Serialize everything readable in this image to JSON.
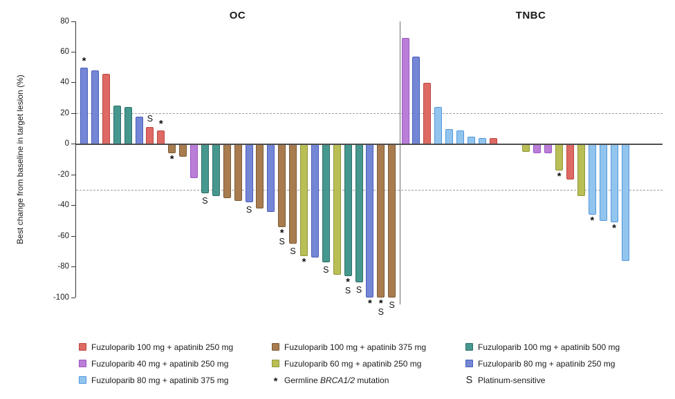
{
  "chart_data": {
    "type": "bar",
    "subtype": "waterfall",
    "title": "",
    "ylabel": "Best change from baseline in target lesion (%)",
    "ylim": [
      -100,
      80
    ],
    "yticks": [
      80,
      60,
      40,
      20,
      0,
      -20,
      -40,
      -60,
      -80,
      -100
    ],
    "reference_lines_y": [
      20,
      -30
    ],
    "grid": false,
    "legend_position": "bottom",
    "marker_meanings": {
      "*": "Germline BRCA1/2 mutation",
      "S": "Platinum-sensitive"
    },
    "groups": [
      {
        "id": "fz100-ap250",
        "label": "Fuzuloparib 100 mg + apatinib 250 mg",
        "fill": "#de6a64",
        "border": "#bb4540"
      },
      {
        "id": "fz40-ap250",
        "label": "Fuzuloparib 40 mg + apatinib 250 mg",
        "fill": "#ba7dd8",
        "border": "#9a55c2"
      },
      {
        "id": "fz80-ap375",
        "label": "Fuzuloparib 80 mg + apatinib 375 mg",
        "fill": "#92c5ee",
        "border": "#5096dc"
      },
      {
        "id": "fz100-ap375",
        "label": "Fuzuloparib 100 mg + apatinib 375 mg",
        "fill": "#a87c4f",
        "border": "#7a5a33"
      },
      {
        "id": "fz60-ap250",
        "label": "Fuzuloparib 60 mg + apatinib 250 mg",
        "fill": "#b9be55",
        "border": "#8f963b"
      },
      {
        "id": "fz100-ap500",
        "label": "Fuzuloparib 100 mg + apatinib 500 mg",
        "fill": "#46988f",
        "border": "#2f6d66"
      },
      {
        "id": "fz80-ap250",
        "label": "Fuzuloparib 80 mg + apatinib 250 mg",
        "fill": "#7487d6",
        "border": "#4a5cb8"
      }
    ],
    "panels": [
      {
        "title": "OC",
        "bars": [
          {
            "slot": 0,
            "value": 50,
            "group": "fz80-ap250",
            "markers": [
              "*"
            ]
          },
          {
            "slot": 1,
            "value": 48,
            "group": "fz80-ap250",
            "markers": []
          },
          {
            "slot": 2,
            "value": 46,
            "group": "fz100-ap250",
            "markers": []
          },
          {
            "slot": 3,
            "value": 25,
            "group": "fz100-ap500",
            "markers": []
          },
          {
            "slot": 4,
            "value": 24,
            "group": "fz100-ap500",
            "markers": []
          },
          {
            "slot": 5,
            "value": 18,
            "group": "fz80-ap250",
            "markers": []
          },
          {
            "slot": 6,
            "value": 11,
            "group": "fz100-ap250",
            "markers": [
              "S"
            ]
          },
          {
            "slot": 7,
            "value": 9,
            "group": "fz100-ap250",
            "markers": [
              "*"
            ]
          },
          {
            "slot": 8,
            "value": -6,
            "group": "fz100-ap375",
            "markers": [
              "*"
            ]
          },
          {
            "slot": 9,
            "value": -8,
            "group": "fz100-ap375",
            "markers": []
          },
          {
            "slot": 10,
            "value": -22,
            "group": "fz40-ap250",
            "markers": []
          },
          {
            "slot": 11,
            "value": -32,
            "group": "fz100-ap500",
            "markers": [
              "S"
            ]
          },
          {
            "slot": 12,
            "value": -34,
            "group": "fz100-ap500",
            "markers": []
          },
          {
            "slot": 13,
            "value": -35,
            "group": "fz100-ap375",
            "markers": []
          },
          {
            "slot": 14,
            "value": -37,
            "group": "fz100-ap375",
            "markers": []
          },
          {
            "slot": 15,
            "value": -38,
            "group": "fz80-ap250",
            "markers": [
              "S"
            ]
          },
          {
            "slot": 16,
            "value": -42,
            "group": "fz100-ap375",
            "markers": []
          },
          {
            "slot": 17,
            "value": -44,
            "group": "fz80-ap250",
            "markers": []
          },
          {
            "slot": 18,
            "value": -54,
            "group": "fz100-ap375",
            "markers": [
              "*",
              "S"
            ]
          },
          {
            "slot": 19,
            "value": -65,
            "group": "fz100-ap375",
            "markers": [
              "S"
            ]
          },
          {
            "slot": 20,
            "value": -73,
            "group": "fz60-ap250",
            "markers": [
              "*"
            ]
          },
          {
            "slot": 21,
            "value": -74,
            "group": "fz80-ap250",
            "markers": []
          },
          {
            "slot": 22,
            "value": -77,
            "group": "fz100-ap500",
            "markers": [
              "S"
            ]
          },
          {
            "slot": 23,
            "value": -85,
            "group": "fz60-ap250",
            "markers": []
          },
          {
            "slot": 24,
            "value": -86,
            "group": "fz100-ap500",
            "markers": [
              "*",
              "S"
            ]
          },
          {
            "slot": 25,
            "value": -90,
            "group": "fz100-ap500",
            "markers": [
              "S"
            ]
          },
          {
            "slot": 26,
            "value": -100,
            "group": "fz80-ap250",
            "markers": [
              "*"
            ]
          },
          {
            "slot": 27,
            "value": -100,
            "group": "fz100-ap375",
            "markers": [
              "*",
              "S"
            ]
          },
          {
            "slot": 28,
            "value": -100,
            "group": "fz100-ap375",
            "markers": [
              "S"
            ]
          }
        ]
      },
      {
        "title": "TNBC",
        "bars": [
          {
            "slot": 0,
            "value": 69,
            "group": "fz40-ap250",
            "markers": []
          },
          {
            "slot": 1,
            "value": 57,
            "group": "fz80-ap250",
            "markers": []
          },
          {
            "slot": 2,
            "value": 40,
            "group": "fz100-ap250",
            "markers": []
          },
          {
            "slot": 3,
            "value": 24,
            "group": "fz80-ap375",
            "markers": []
          },
          {
            "slot": 4,
            "value": 10,
            "group": "fz80-ap375",
            "markers": []
          },
          {
            "slot": 5,
            "value": 9,
            "group": "fz80-ap375",
            "markers": []
          },
          {
            "slot": 6,
            "value": 5,
            "group": "fz80-ap375",
            "markers": []
          },
          {
            "slot": 7,
            "value": 4,
            "group": "fz80-ap375",
            "markers": []
          },
          {
            "slot": 8,
            "value": 4,
            "group": "fz100-ap250",
            "markers": []
          },
          {
            "slot": 11,
            "value": -5,
            "group": "fz60-ap250",
            "markers": []
          },
          {
            "slot": 12,
            "value": -6,
            "group": "fz40-ap250",
            "markers": []
          },
          {
            "slot": 13,
            "value": -6,
            "group": "fz40-ap250",
            "markers": []
          },
          {
            "slot": 14,
            "value": -17,
            "group": "fz60-ap250",
            "markers": [
              "*"
            ]
          },
          {
            "slot": 15,
            "value": -23,
            "group": "fz100-ap250",
            "markers": []
          },
          {
            "slot": 16,
            "value": -34,
            "group": "fz60-ap250",
            "markers": []
          },
          {
            "slot": 17,
            "value": -46,
            "group": "fz80-ap375",
            "markers": [
              "*"
            ]
          },
          {
            "slot": 18,
            "value": -50,
            "group": "fz80-ap375",
            "markers": []
          },
          {
            "slot": 19,
            "value": -51,
            "group": "fz80-ap375",
            "markers": [
              "*"
            ]
          },
          {
            "slot": 20,
            "value": -76,
            "group": "fz80-ap375",
            "markers": []
          }
        ]
      }
    ]
  },
  "legend": {
    "columns": [
      {
        "items": [
          {
            "kind": "swatch",
            "group": "fz100-ap250",
            "label": "Fuzuloparib 100 mg + apatinib 250 mg"
          },
          {
            "kind": "swatch",
            "group": "fz40-ap250",
            "label": "Fuzuloparib 40 mg + apatinib 250 mg"
          },
          {
            "kind": "swatch",
            "group": "fz80-ap375",
            "label": "Fuzuloparib 80 mg + apatinib 375 mg"
          }
        ]
      },
      {
        "items": [
          {
            "kind": "swatch",
            "group": "fz100-ap375",
            "label": "Fuzuloparib 100 mg + apatinib 375 mg"
          },
          {
            "kind": "swatch",
            "group": "fz60-ap250",
            "label": "Fuzuloparib 60 mg + apatinib 250 mg"
          },
          {
            "kind": "symbol",
            "symbol": "*",
            "label_prefix": "Germline ",
            "label_italic": "BRCA1/2",
            "label_suffix": " mutation"
          }
        ]
      },
      {
        "items": [
          {
            "kind": "swatch",
            "group": "fz100-ap500",
            "label": "Fuzuloparib 100 mg + apatinib 500 mg"
          },
          {
            "kind": "swatch",
            "group": "fz80-ap250",
            "label": "Fuzuloparib 80 mg + apatinib 250 mg"
          },
          {
            "kind": "symbol",
            "symbol": "S",
            "label": "Platinum-sensitive"
          }
        ]
      }
    ]
  }
}
